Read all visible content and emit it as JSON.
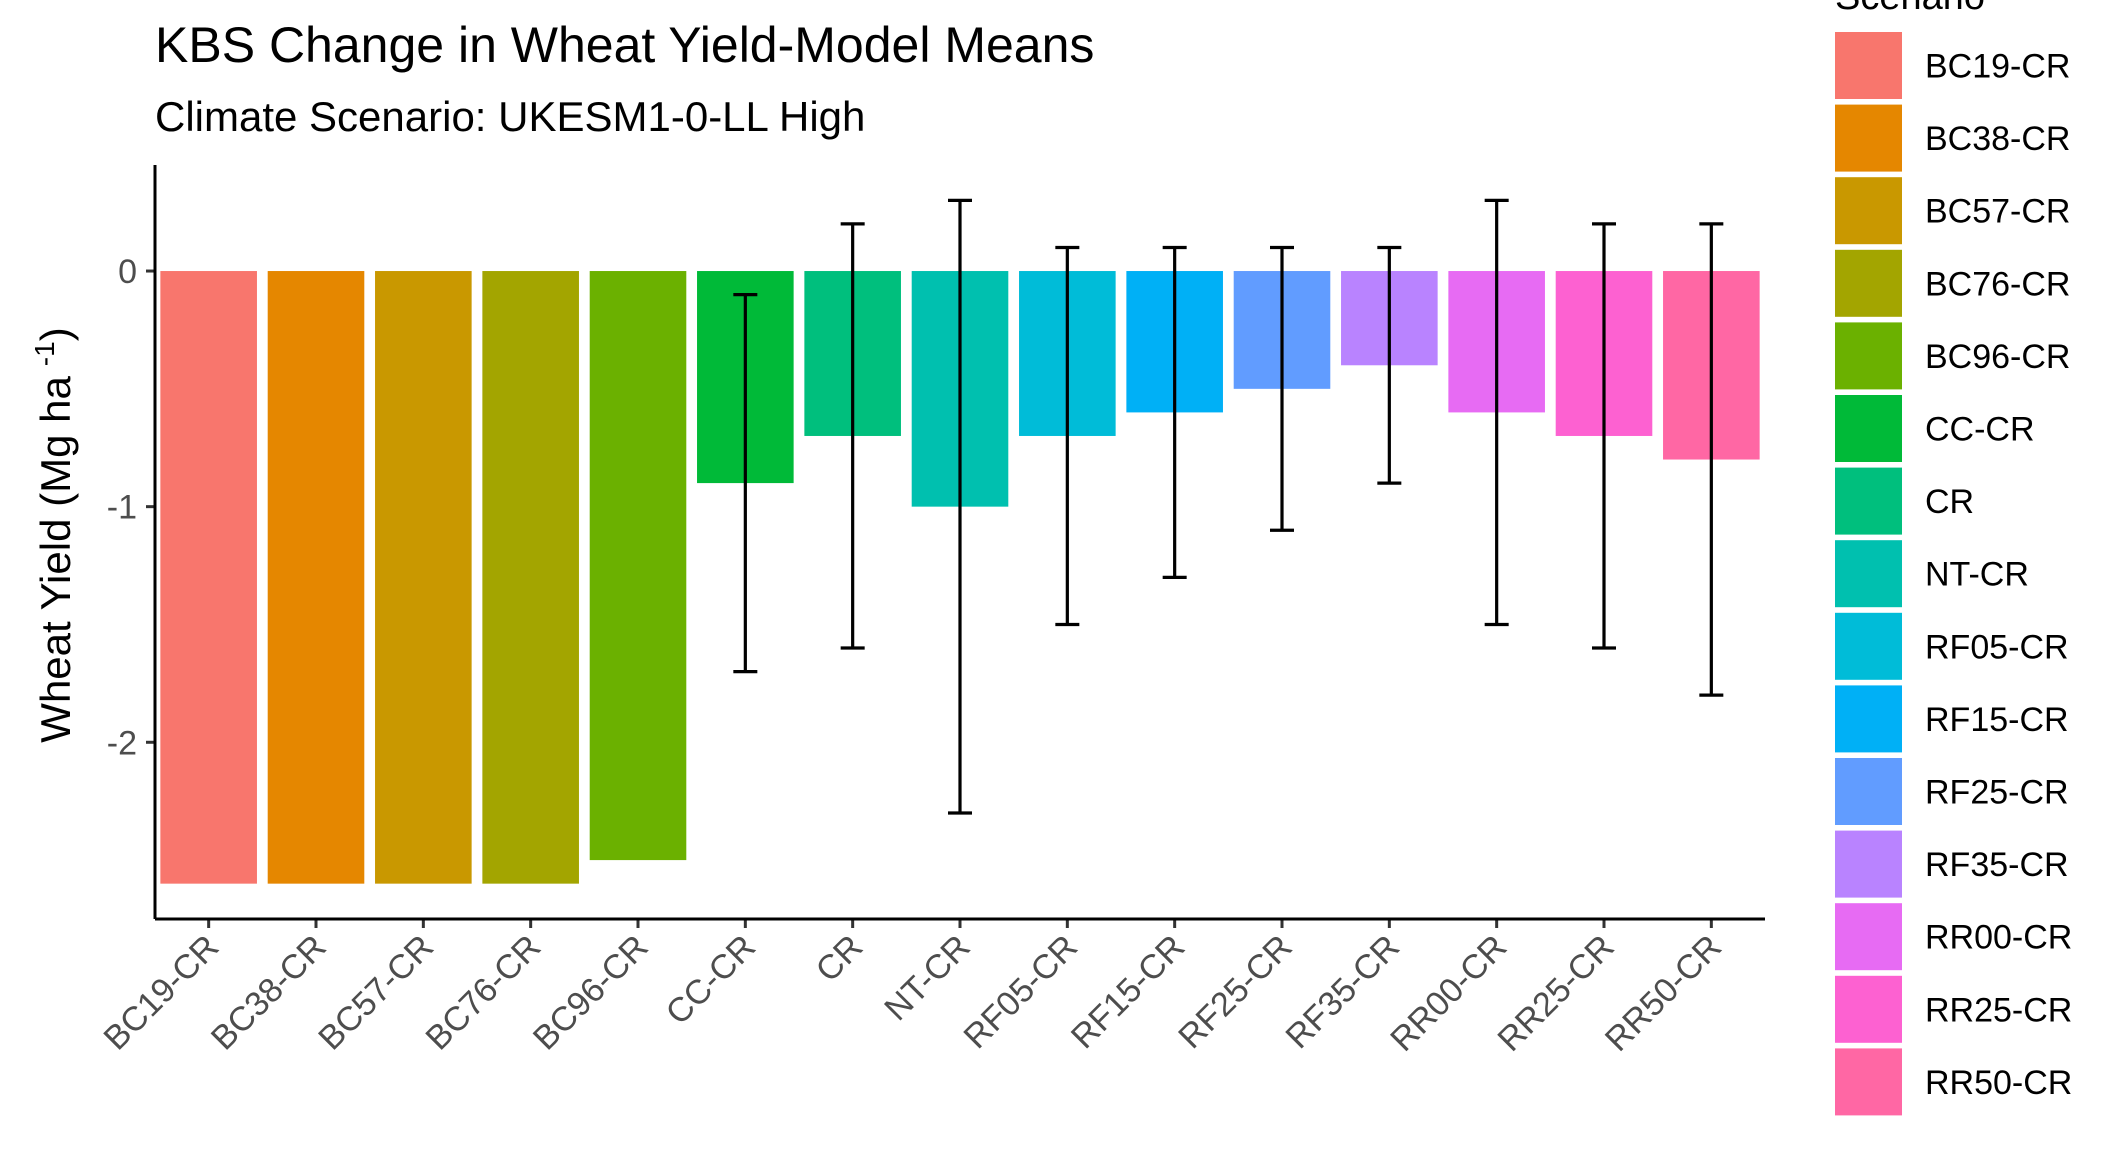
{
  "chart_data": {
    "type": "bar",
    "title": "KBS Change in Wheat Yield-Model Means",
    "subtitle": "Climate Scenario: UKESM1-0-LL High",
    "ylabel_main": "Wheat Yield (Mg ha",
    "ylabel_sup": "-1",
    "ylabel_close": ")",
    "xlabel": "",
    "ylim": [
      -2.75,
      0.45
    ],
    "yticks": [
      0,
      -1,
      -2
    ],
    "ytick_labels": [
      "0",
      "-1",
      "-2"
    ],
    "legend": {
      "title": "Scenario",
      "placement": "right"
    },
    "categories": [
      "BC19-CR",
      "BC38-CR",
      "BC57-CR",
      "BC76-CR",
      "BC96-CR",
      "CC-CR",
      "CR",
      "NT-CR",
      "RF05-CR",
      "RF15-CR",
      "RF25-CR",
      "RF35-CR",
      "RR00-CR",
      "RR25-CR",
      "RR50-CR"
    ],
    "values": [
      -2.6,
      -2.6,
      -2.6,
      -2.6,
      -2.5,
      -0.9,
      -0.7,
      -1.0,
      -0.7,
      -0.6,
      -0.5,
      -0.4,
      -0.6,
      -0.7,
      -0.8
    ],
    "error_low": [
      null,
      null,
      null,
      null,
      null,
      -1.7,
      -1.6,
      -2.3,
      -1.5,
      -1.3,
      -1.1,
      -0.9,
      -1.5,
      -1.6,
      -1.8
    ],
    "error_high": [
      null,
      null,
      null,
      null,
      null,
      -0.1,
      0.2,
      0.3,
      0.1,
      0.1,
      0.1,
      0.1,
      0.3,
      0.2,
      0.2
    ],
    "colors": [
      "#F8766D",
      "#E58700",
      "#C99800",
      "#A3A500",
      "#6BB100",
      "#00BA38",
      "#00BF7D",
      "#00C0AF",
      "#00BCD8",
      "#00B0F6",
      "#619CFF",
      "#B983FF",
      "#E76BF3",
      "#FD61D1",
      "#FF67A4"
    ]
  }
}
